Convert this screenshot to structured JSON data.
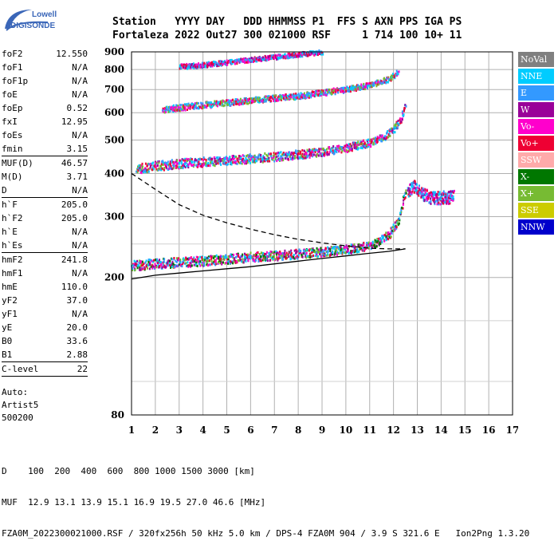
{
  "logo": {
    "line1": "Lowell",
    "line2": "DIGISONDE"
  },
  "header": {
    "row1": "Station   YYYY DAY   DDD HHMMSS P1  FFS S AXN PPS IGA PS",
    "row2": "Fortaleza 2022 Out27 300 021000 RSF     1 714 100 10+ 11"
  },
  "params": [
    {
      "label": "foF2",
      "value": "12.550"
    },
    {
      "label": "foF1",
      "value": "N/A"
    },
    {
      "label": "foF1p",
      "value": "N/A"
    },
    {
      "label": "foE",
      "value": "N/A"
    },
    {
      "label": "foEp",
      "value": "0.52"
    },
    {
      "label": "fxI",
      "value": "12.95"
    },
    {
      "label": "foEs",
      "value": "N/A"
    },
    {
      "label": "fmin",
      "value": "3.15"
    },
    {
      "sep": true
    },
    {
      "label": "MUF(D)",
      "value": "46.57"
    },
    {
      "label": "M(D)",
      "value": "3.71"
    },
    {
      "label": "D",
      "value": "N/A"
    },
    {
      "sep": true
    },
    {
      "label": "h`F",
      "value": "205.0"
    },
    {
      "label": "h`F2",
      "value": "205.0"
    },
    {
      "label": "h`E",
      "value": "N/A"
    },
    {
      "label": "h`Es",
      "value": "N/A"
    },
    {
      "sep": true
    },
    {
      "label": "hmF2",
      "value": "241.8"
    },
    {
      "label": "hmF1",
      "value": "N/A"
    },
    {
      "label": "hmE",
      "value": "110.0"
    },
    {
      "label": "yF2",
      "value": "37.0"
    },
    {
      "label": "yF1",
      "value": "N/A"
    },
    {
      "label": "yE",
      "value": "20.0"
    },
    {
      "label": "B0",
      "value": "33.6"
    },
    {
      "label": "B1",
      "value": "2.88"
    },
    {
      "sep": true
    },
    {
      "label": "C-level",
      "value": "22"
    },
    {
      "sep": true
    }
  ],
  "auto": {
    "line1": "Auto:",
    "line2": "Artist5",
    "line3": "500200"
  },
  "legend": [
    {
      "label": "NoVal",
      "color": "#808080"
    },
    {
      "label": "NNE",
      "color": "#00ccff"
    },
    {
      "label": "E",
      "color": "#3399ff"
    },
    {
      "label": "W",
      "color": "#990099"
    },
    {
      "label": "Vo-",
      "color": "#ff00cc"
    },
    {
      "label": "Vo+",
      "color": "#ee0033"
    },
    {
      "label": "SSW",
      "color": "#ffaaaa"
    },
    {
      "label": "X-",
      "color": "#007700"
    },
    {
      "label": "X+",
      "color": "#77bb33"
    },
    {
      "label": "SSE",
      "color": "#cccc00"
    },
    {
      "label": "NNW",
      "color": "#0000cc"
    }
  ],
  "footer": {
    "line1": "D    100  200  400  600  800 1000 1500 3000 [km]",
    "line2": "MUF  12.9 13.1 13.9 15.1 16.9 19.5 27.0 46.6 [MHz]",
    "line3": "FZA0M_2022300021000.RSF / 320fx256h 50 kHz 5.0 km / DPS-4 FZA0M 904 / 3.9 S 321.6 E   Ion2Png 1.3.20"
  },
  "chart_data": {
    "type": "scatter",
    "title": "",
    "xlabel": "",
    "ylabel": "",
    "x_ticks": [
      1,
      2,
      3,
      4,
      5,
      6,
      7,
      8,
      9,
      10,
      11,
      12,
      13,
      14,
      15,
      16,
      17
    ],
    "y_ticks": [
      80,
      200,
      300,
      400,
      500,
      600,
      700,
      800,
      900
    ],
    "xlim": [
      1,
      17
    ],
    "ylim": [
      80,
      900
    ],
    "y_scale": "log",
    "grid": true,
    "legend_position": "right",
    "series": [
      {
        "trace": "F2 first hop",
        "x": [
          1.0,
          2.0,
          3.0,
          4.0,
          5.0,
          6.0,
          7.0,
          8.0,
          9.0,
          10.0,
          10.8,
          11.3,
          11.8,
          12.2,
          12.5
        ],
        "y": [
          215,
          218,
          220,
          222,
          225,
          228,
          230,
          233,
          236,
          240,
          245,
          252,
          265,
          290,
          360
        ]
      },
      {
        "trace": "F2 second hop",
        "x": [
          1.2,
          2.0,
          3.0,
          4.0,
          5.0,
          6.0,
          7.0,
          8.0,
          9.0,
          10.0,
          11.0,
          11.6,
          12.0,
          12.3,
          12.5
        ],
        "y": [
          410,
          418,
          425,
          430,
          435,
          440,
          445,
          452,
          460,
          472,
          490,
          510,
          535,
          575,
          630
        ]
      },
      {
        "trace": "F2 third hop",
        "x": [
          2.3,
          3.0,
          4.0,
          5.0,
          6.0,
          7.0,
          8.0,
          9.0,
          10.0,
          11.0,
          11.8,
          12.2
        ],
        "y": [
          610,
          620,
          630,
          640,
          650,
          660,
          670,
          685,
          700,
          720,
          750,
          790
        ]
      },
      {
        "trace": "F2 fourth hop",
        "x": [
          3.0,
          4.0,
          5.0,
          6.0,
          7.0,
          8.0,
          9.0
        ],
        "y": [
          815,
          825,
          840,
          855,
          870,
          885,
          900
        ]
      },
      {
        "trace": "Scattered echoes",
        "x": [
          12.6,
          12.8,
          13.0,
          13.2,
          13.4,
          13.6,
          14.0,
          14.5
        ],
        "y": [
          350,
          365,
          360,
          345,
          340,
          335,
          337,
          338
        ]
      },
      {
        "trace": "Profile upper (dashed)",
        "x": [
          1.0,
          2.0,
          3.0,
          4.0,
          5.0,
          6.0,
          7.0,
          8.0,
          9.0,
          10.0,
          11.0,
          11.8,
          12.5
        ],
        "y": [
          400,
          360,
          325,
          303,
          288,
          276,
          266,
          258,
          252,
          247,
          243,
          242,
          242
        ]
      },
      {
        "trace": "Profile lower (solid)",
        "x": [
          1.0,
          2.0,
          3.0,
          4.0,
          5.0,
          6.0,
          7.0,
          8.0,
          9.0,
          10.0,
          11.0,
          11.8,
          12.5
        ],
        "y": [
          198,
          203,
          206,
          209,
          212,
          215,
          219,
          223,
          227,
          231,
          235,
          238,
          242
        ]
      }
    ]
  }
}
